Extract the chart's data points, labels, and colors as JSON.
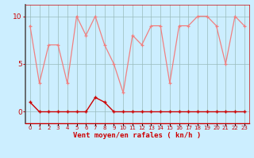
{
  "x": [
    0,
    1,
    2,
    3,
    4,
    5,
    6,
    7,
    8,
    9,
    10,
    11,
    12,
    13,
    14,
    15,
    16,
    17,
    18,
    19,
    20,
    21,
    22,
    23
  ],
  "y_rafales": [
    9,
    3,
    7,
    7,
    3,
    10,
    8,
    10,
    7,
    5,
    2,
    8,
    7,
    9,
    9,
    3,
    9,
    9,
    10,
    10,
    9,
    5,
    10,
    9
  ],
  "y_moyen": [
    1,
    0,
    0,
    0,
    0,
    0,
    0,
    1.5,
    1,
    0,
    0,
    0,
    0,
    0,
    0,
    0,
    0,
    0,
    0,
    0,
    0,
    0,
    0,
    0
  ],
  "color_rafales": "#f08080",
  "color_moyen": "#cc0000",
  "bg_color": "#cceeff",
  "grid_color": "#99bbbb",
  "xlabel": "Vent moyen/en rafales ( kn/h )",
  "ylim": [
    -1.2,
    11.2
  ],
  "xlim": [
    -0.5,
    23.5
  ],
  "yticks": [
    0,
    5,
    10
  ],
  "xlabel_color": "#cc0000",
  "tick_color": "#cc0000",
  "left_spine_color": "#555555",
  "other_spine_color": "#cc0000"
}
